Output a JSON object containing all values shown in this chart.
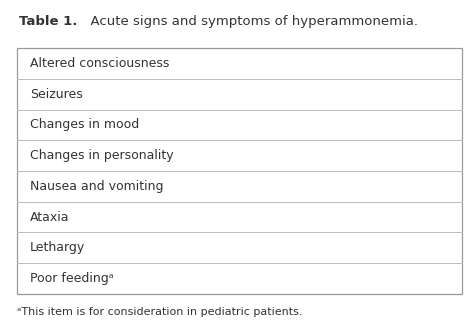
{
  "title_bold": "Table 1.",
  "title_rest": "  Acute signs and symptoms of hyperammonemia.",
  "rows": [
    "Altered consciousness",
    "Seizures",
    "Changes in mood",
    "Changes in personality",
    "Nausea and vomiting",
    "Ataxia",
    "Lethargy",
    "Poor feedingᵃ"
  ],
  "footnote": "ᵃThis item is for consideration in pediatric patients.",
  "bg_color": "#ffffff",
  "table_border_color": "#999999",
  "row_line_color": "#bbbbbb",
  "text_color": "#333333",
  "title_fontsize": 9.5,
  "row_fontsize": 9.0,
  "footnote_fontsize": 8.0
}
